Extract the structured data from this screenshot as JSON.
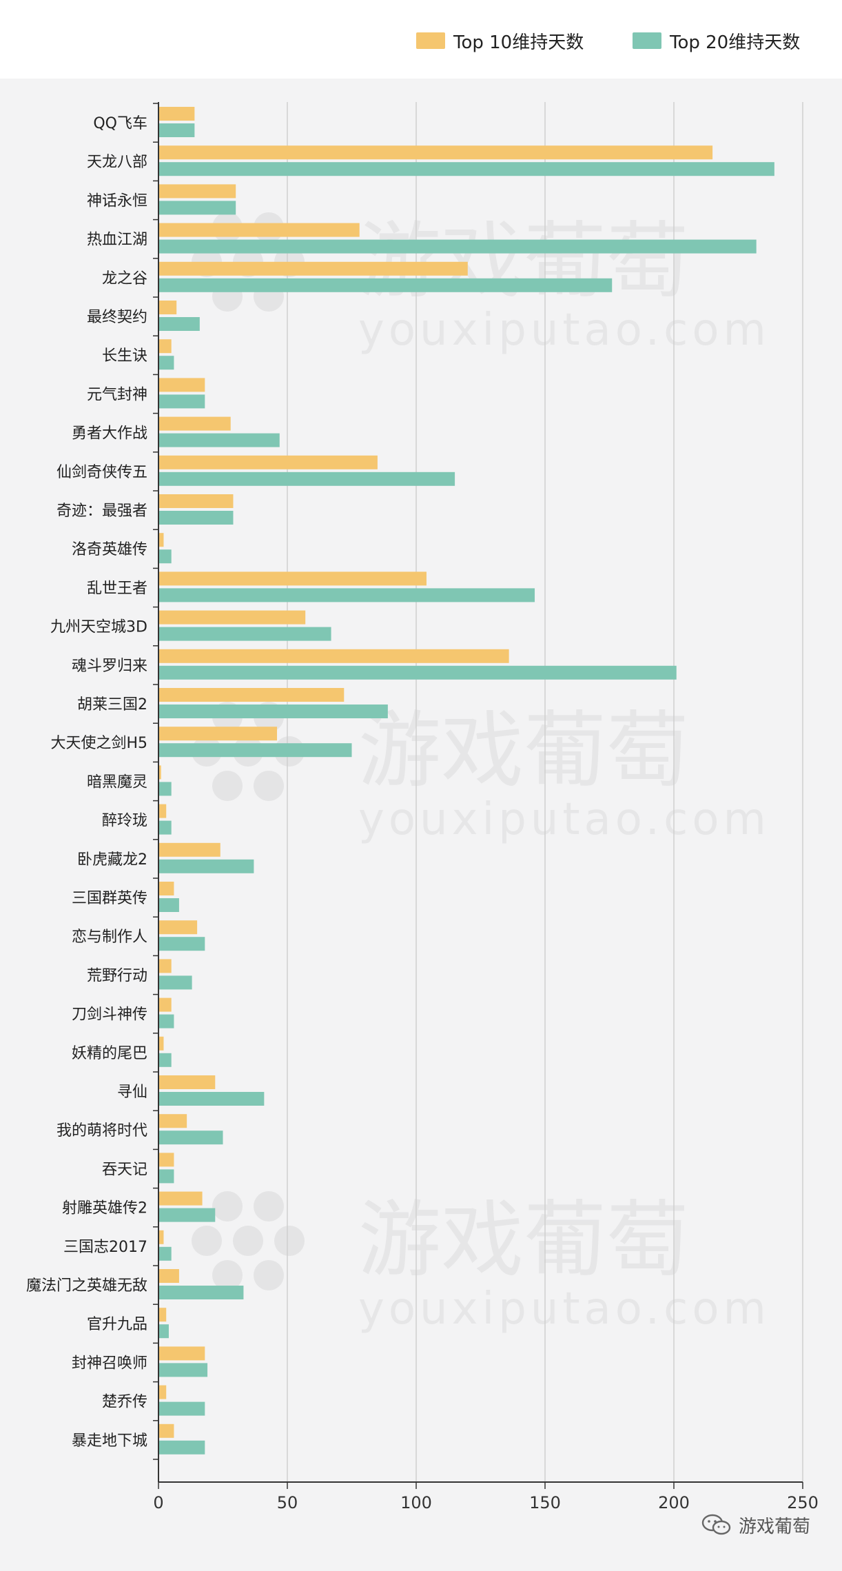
{
  "legend": {
    "top10_label": "Top 10维持天数",
    "top20_label": "Top 20维持天数"
  },
  "colors": {
    "top10": "#f5c66f",
    "top20": "#7fc6b3",
    "background": "#f3f3f4",
    "gridline": "#cfcfcf"
  },
  "watermark": {
    "brand": "游戏葡萄",
    "site": "youxiputao.com"
  },
  "footer": {
    "brand": "游戏葡萄",
    "icon": "wechat-icon"
  },
  "chart_data": {
    "type": "bar",
    "orientation": "horizontal",
    "categories": [
      "QQ飞车",
      "天龙八部",
      "神话永恒",
      "热血江湖",
      "龙之谷",
      "最终契约",
      "长生诀",
      "元气封神",
      "勇者大作战",
      "仙剑奇侠传五",
      "奇迹：最强者",
      "洛奇英雄传",
      "乱世王者",
      "九州天空城3D",
      "魂斗罗归来",
      "胡莱三国2",
      "大天使之剑H5",
      "暗黑魔灵",
      "醉玲珑",
      "卧虎藏龙2",
      "三国群英传",
      "恋与制作人",
      "荒野行动",
      "刀剑斗神传",
      "妖精的尾巴",
      "寻仙",
      "我的萌将时代",
      "吞天记",
      "射雕英雄传2",
      "三国志2017",
      "魔法门之英雄无敌",
      "官升九品",
      "封神召唤师",
      "楚乔传",
      "暴走地下城"
    ],
    "series": [
      {
        "name": "Top 10维持天数",
        "values": [
          14,
          215,
          30,
          78,
          120,
          7,
          5,
          18,
          28,
          85,
          29,
          2,
          104,
          57,
          136,
          72,
          46,
          1,
          3,
          24,
          6,
          15,
          5,
          5,
          2,
          22,
          11,
          6,
          17,
          2,
          8,
          3,
          18,
          3,
          6
        ]
      },
      {
        "name": "Top 20维持天数",
        "values": [
          14,
          239,
          30,
          232,
          176,
          16,
          6,
          18,
          47,
          115,
          29,
          5,
          146,
          67,
          201,
          89,
          75,
          5,
          5,
          37,
          8,
          18,
          13,
          6,
          5,
          41,
          25,
          6,
          22,
          5,
          33,
          4,
          19,
          18,
          18
        ]
      }
    ],
    "xlim": [
      0,
      250
    ],
    "xticks": [
      "0",
      "50",
      "100",
      "150",
      "200",
      "250"
    ],
    "xlabel": "",
    "ylabel": "",
    "grid": true,
    "legend_position": "top-right"
  }
}
